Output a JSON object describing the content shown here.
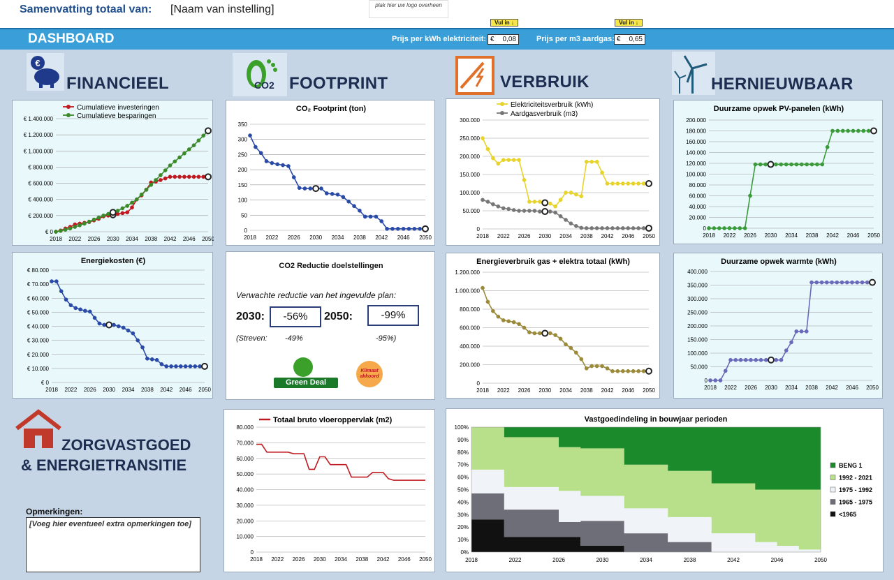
{
  "header": {
    "summary_label": "Samenvatting totaal van:",
    "institution": "[Naam van instelling]",
    "logo_placeholder": "plak hier uw logo overheen"
  },
  "dashboard": {
    "title": "DASHBOARD",
    "fill_in": "Vul in ↓",
    "electricity_price": {
      "label": "Prijs per kWh elektriciteit:",
      "currency": "€",
      "value": "0,08"
    },
    "gas_price": {
      "label": "Prijs per m3 aardgas:",
      "currency": "€",
      "value": "0,65"
    }
  },
  "sections": {
    "financial": "FINANCIEEL",
    "footprint": "FOOTPRINT",
    "footprint_icon_text": "CO2",
    "usage": "VERBRUIK",
    "renewable": "HERNIEUWBAAR",
    "real_estate_line1": "ZORGVASTGOED",
    "real_estate_line2": "& ENERGIETRANSITIE"
  },
  "icons": {
    "financial": "piggy-bank-icon",
    "footprint": "footprint-icon",
    "usage": "energy-icon",
    "renewable": "wind-turbine-icon",
    "real_estate": "house-icon"
  },
  "colors": {
    "dashbar": "#3a9fd9",
    "green": "#3a8a2a",
    "red": "#c0191f",
    "blue": "#2a4aa8",
    "yellow": "#e8d32a",
    "grey": "#777777",
    "olive": "#9a8a3a",
    "teal": "#2a6a9a"
  },
  "co2_targets": {
    "title": "CO2 Reductie doelstellingen",
    "expected_label": "Verwachte reductie van het ingevulde plan:",
    "y2030_label": "2030:",
    "y2030_value": "-56%",
    "y2050_label": "2050:",
    "y2050_value": "-99%",
    "strive_label": "(Streven:",
    "strive_2030": "-49%",
    "strive_2050": "-95%)",
    "green_deal": "Green Deal",
    "climate_badge": "Klimaat akkoord"
  },
  "remarks": {
    "label": "Opmerkingen:",
    "value": "[Voeg hier eventueel extra opmerkingen toe]"
  },
  "chart_data": [
    {
      "id": "investments",
      "type": "line",
      "title": "",
      "x": [
        2018,
        2019,
        2020,
        2021,
        2022,
        2023,
        2024,
        2025,
        2026,
        2027,
        2028,
        2029,
        2030,
        2031,
        2032,
        2033,
        2034,
        2035,
        2036,
        2037,
        2038,
        2039,
        2040,
        2041,
        2042,
        2043,
        2044,
        2045,
        2046,
        2047,
        2048,
        2049,
        2050
      ],
      "x_ticks": [
        "2018",
        "2022",
        "2026",
        "2030",
        "2034",
        "2038",
        "2042",
        "2046",
        "2050"
      ],
      "y_ticks": [
        "€ 0",
        "€ 200.000",
        "€ 400.000",
        "€ 600.000",
        "€ 800.000",
        "€ 1.000.000",
        "€ 1.200.000",
        "€ 1.400.000"
      ],
      "ylim": [
        0,
        1400000
      ],
      "series": [
        {
          "name": "Cumulatieve investeringen",
          "color": "#c0191f",
          "values": [
            0,
            15000,
            40000,
            60000,
            90000,
            100000,
            110000,
            120000,
            140000,
            160000,
            190000,
            200000,
            210000,
            220000,
            230000,
            240000,
            300000,
            400000,
            450000,
            520000,
            610000,
            620000,
            640000,
            660000,
            680000,
            680000,
            680000,
            680000,
            680000,
            680000,
            680000,
            680000,
            680000
          ]
        },
        {
          "name": "Cumulatieve besparingen",
          "color": "#3a8a2a",
          "values": [
            0,
            10000,
            25000,
            40000,
            60000,
            80000,
            100000,
            125000,
            150000,
            175000,
            200000,
            220000,
            240000,
            260000,
            290000,
            320000,
            360000,
            400000,
            460000,
            520000,
            580000,
            640000,
            700000,
            760000,
            820000,
            870000,
            920000,
            970000,
            1020000,
            1070000,
            1130000,
            1190000,
            1250000
          ]
        }
      ]
    },
    {
      "id": "footprint",
      "type": "line",
      "title": "CO₂ Footprint (ton)",
      "x": [
        2018,
        2019,
        2020,
        2021,
        2022,
        2023,
        2024,
        2025,
        2026,
        2027,
        2028,
        2029,
        2030,
        2031,
        2032,
        2033,
        2034,
        2035,
        2036,
        2037,
        2038,
        2039,
        2040,
        2041,
        2042,
        2043,
        2044,
        2045,
        2046,
        2047,
        2048,
        2049,
        2050
      ],
      "x_ticks": [
        "2018",
        "2022",
        "2026",
        "2030",
        "2034",
        "2038",
        "2042",
        "2046",
        "2050"
      ],
      "y_ticks": [
        "0",
        "50",
        "100",
        "150",
        "200",
        "250",
        "300",
        "350"
      ],
      "ylim": [
        0,
        350
      ],
      "series": [
        {
          "name": "",
          "color": "#2a4aa8",
          "values": [
            313,
            275,
            255,
            228,
            222,
            218,
            215,
            212,
            175,
            140,
            138,
            138,
            138,
            138,
            122,
            120,
            118,
            110,
            95,
            80,
            65,
            45,
            45,
            45,
            30,
            5,
            5,
            5,
            5,
            5,
            5,
            5,
            5
          ]
        }
      ]
    },
    {
      "id": "usage",
      "type": "line",
      "title": "",
      "x": [
        2018,
        2019,
        2020,
        2021,
        2022,
        2023,
        2024,
        2025,
        2026,
        2027,
        2028,
        2029,
        2030,
        2031,
        2032,
        2033,
        2034,
        2035,
        2036,
        2037,
        2038,
        2039,
        2040,
        2041,
        2042,
        2043,
        2044,
        2045,
        2046,
        2047,
        2048,
        2049,
        2050
      ],
      "x_ticks": [
        "2018",
        "2022",
        "2026",
        "2030",
        "2034",
        "2038",
        "2042",
        "2046",
        "2050"
      ],
      "y_ticks": [
        "0",
        "50.000",
        "100.000",
        "150.000",
        "200.000",
        "250.000",
        "300.000"
      ],
      "ylim": [
        0,
        300000
      ],
      "series": [
        {
          "name": "Elektriciteitsverbruik (kWh)",
          "color": "#e8d32a",
          "values": [
            250000,
            220000,
            195000,
            180000,
            190000,
            190000,
            190000,
            190000,
            135000,
            75000,
            75000,
            75000,
            72000,
            70000,
            62000,
            80000,
            100000,
            100000,
            95000,
            90000,
            185000,
            185000,
            185000,
            155000,
            125000,
            125000,
            125000,
            125000,
            125000,
            125000,
            125000,
            125000,
            125000
          ]
        },
        {
          "name": "Aardgasverbruik (m3)",
          "color": "#777777",
          "values": [
            80000,
            75000,
            68000,
            62000,
            57000,
            55000,
            52000,
            50000,
            50000,
            50000,
            50000,
            48000,
            48000,
            48000,
            45000,
            35000,
            25000,
            15000,
            8000,
            3000,
            2000,
            2000,
            2000,
            2000,
            2000,
            2000,
            2000,
            2000,
            2000,
            2000,
            2000,
            2000,
            2000
          ]
        }
      ]
    },
    {
      "id": "pv",
      "type": "line",
      "title": "Duurzame opwek PV-panelen (kWh)",
      "x": [
        2018,
        2019,
        2020,
        2021,
        2022,
        2023,
        2024,
        2025,
        2026,
        2027,
        2028,
        2029,
        2030,
        2031,
        2032,
        2033,
        2034,
        2035,
        2036,
        2037,
        2038,
        2039,
        2040,
        2041,
        2042,
        2043,
        2044,
        2045,
        2046,
        2047,
        2048,
        2049,
        2050
      ],
      "x_ticks": [
        "2018",
        "2022",
        "2026",
        "2030",
        "2034",
        "2038",
        "2042",
        "2046",
        "2050"
      ],
      "y_ticks": [
        "0",
        "20.000",
        "40.000",
        "60.000",
        "80.000",
        "100.000",
        "120.000",
        "140.000",
        "160.000",
        "180.000",
        "200.000"
      ],
      "ylim": [
        0,
        200000
      ],
      "series": [
        {
          "name": "",
          "color": "#3a9a3a",
          "values": [
            0,
            0,
            0,
            0,
            0,
            0,
            0,
            0,
            60000,
            118000,
            118000,
            118000,
            118000,
            118000,
            118000,
            118000,
            118000,
            118000,
            118000,
            118000,
            118000,
            118000,
            118000,
            150000,
            180000,
            180000,
            180000,
            180000,
            180000,
            180000,
            180000,
            180000,
            180000
          ]
        }
      ]
    },
    {
      "id": "costs",
      "type": "line",
      "title": "Energiekosten (€)",
      "x": [
        2018,
        2019,
        2020,
        2021,
        2022,
        2023,
        2024,
        2025,
        2026,
        2027,
        2028,
        2029,
        2030,
        2031,
        2032,
        2033,
        2034,
        2035,
        2036,
        2037,
        2038,
        2039,
        2040,
        2041,
        2042,
        2043,
        2044,
        2045,
        2046,
        2047,
        2048,
        2049,
        2050
      ],
      "x_ticks": [
        "2018",
        "2022",
        "2026",
        "2030",
        "2034",
        "2038",
        "2042",
        "2046",
        "2050"
      ],
      "y_ticks": [
        "€ 0",
        "€ 10.000",
        "€ 20.000",
        "€ 30.000",
        "€ 40.000",
        "€ 50.000",
        "€ 60.000",
        "€ 70.000",
        "€ 80.000"
      ],
      "ylim": [
        0,
        80000
      ],
      "series": [
        {
          "name": "",
          "color": "#2a4aa8",
          "values": [
            72000,
            72000,
            65000,
            59000,
            55000,
            53000,
            52000,
            51000,
            50500,
            46000,
            42000,
            41000,
            41000,
            41000,
            40000,
            39000,
            37000,
            35000,
            30000,
            25000,
            17000,
            16500,
            16000,
            13000,
            11500,
            11500,
            11500,
            11500,
            11500,
            11500,
            11500,
            11500,
            11500
          ]
        }
      ]
    },
    {
      "id": "total",
      "type": "line",
      "title": "Energieverbruik gas + elektra totaal (kWh)",
      "x": [
        2018,
        2019,
        2020,
        2021,
        2022,
        2023,
        2024,
        2025,
        2026,
        2027,
        2028,
        2029,
        2030,
        2031,
        2032,
        2033,
        2034,
        2035,
        2036,
        2037,
        2038,
        2039,
        2040,
        2041,
        2042,
        2043,
        2044,
        2045,
        2046,
        2047,
        2048,
        2049,
        2050
      ],
      "x_ticks": [
        "2018",
        "2022",
        "2026",
        "2030",
        "2034",
        "2038",
        "2042",
        "2046",
        "2050"
      ],
      "y_ticks": [
        "0",
        "200.000",
        "400.000",
        "600.000",
        "800.000",
        "1.000.000",
        "1.200.000"
      ],
      "ylim": [
        0,
        1200000
      ],
      "series": [
        {
          "name": "",
          "color": "#9a8a3a",
          "values": [
            1030000,
            880000,
            780000,
            720000,
            680000,
            670000,
            660000,
            640000,
            600000,
            550000,
            540000,
            540000,
            540000,
            540000,
            520000,
            480000,
            420000,
            380000,
            330000,
            260000,
            160000,
            185000,
            185000,
            185000,
            160000,
            130000,
            130000,
            130000,
            130000,
            130000,
            130000,
            130000,
            130000
          ]
        }
      ]
    },
    {
      "id": "heat",
      "type": "line",
      "title": "Duurzame opwek warmte (kWh)",
      "x": [
        2018,
        2019,
        2020,
        2021,
        2022,
        2023,
        2024,
        2025,
        2026,
        2027,
        2028,
        2029,
        2030,
        2031,
        2032,
        2033,
        2034,
        2035,
        2036,
        2037,
        2038,
        2039,
        2040,
        2041,
        2042,
        2043,
        2044,
        2045,
        2046,
        2047,
        2048,
        2049,
        2050
      ],
      "x_ticks": [
        "2018",
        "2022",
        "2026",
        "2030",
        "2034",
        "2038",
        "2042",
        "2046",
        "2050"
      ],
      "y_ticks": [
        "0",
        "50.000",
        "100.000",
        "150.000",
        "200.000",
        "250.000",
        "300.000",
        "350.000",
        "400.000"
      ],
      "ylim": [
        0,
        400000
      ],
      "series": [
        {
          "name": "",
          "color": "#6a6aba",
          "values": [
            0,
            0,
            0,
            35000,
            75000,
            75000,
            75000,
            75000,
            75000,
            75000,
            75000,
            75000,
            75000,
            75000,
            75000,
            110000,
            140000,
            180000,
            180000,
            180000,
            360000,
            360000,
            360000,
            360000,
            360000,
            360000,
            360000,
            360000,
            360000,
            360000,
            360000,
            360000,
            360000
          ]
        }
      ]
    },
    {
      "id": "floor",
      "type": "line",
      "title": "",
      "x": [
        2018,
        2019,
        2020,
        2021,
        2022,
        2023,
        2024,
        2025,
        2026,
        2027,
        2028,
        2029,
        2030,
        2031,
        2032,
        2033,
        2034,
        2035,
        2036,
        2037,
        2038,
        2039,
        2040,
        2041,
        2042,
        2043,
        2044,
        2045,
        2046,
        2047,
        2048,
        2049,
        2050
      ],
      "x_ticks": [
        "2018",
        "2022",
        "2026",
        "2030",
        "2034",
        "2038",
        "2042",
        "2046",
        "2050"
      ],
      "y_ticks": [
        "0",
        "10.000",
        "20.000",
        "30.000",
        "40.000",
        "50.000",
        "60.000",
        "70.000",
        "80.000"
      ],
      "ylim": [
        0,
        80000
      ],
      "series": [
        {
          "name": "Totaal bruto vloeroppervlak (m2)",
          "color": "#c0191f",
          "values": [
            69000,
            69000,
            64000,
            64000,
            64000,
            64000,
            64000,
            63000,
            63000,
            63000,
            53000,
            53000,
            61000,
            61000,
            56000,
            56000,
            56000,
            56000,
            48000,
            48000,
            48000,
            48000,
            51000,
            51000,
            51000,
            47000,
            46000,
            46000,
            46000,
            46000,
            46000,
            46000,
            46000
          ]
        }
      ]
    },
    {
      "id": "buildyear",
      "type": "area",
      "title": "Vastgoedindeling in bouwjaar perioden",
      "x": [
        2018,
        2021,
        2026,
        2028,
        2032,
        2036,
        2040,
        2044,
        2046,
        2048,
        2050
      ],
      "x_ticks": [
        "2018",
        "2022",
        "2026",
        "2030",
        "2034",
        "2038",
        "2042",
        "2046",
        "2050"
      ],
      "y_ticks": [
        "0%",
        "10%",
        "20%",
        "30%",
        "40%",
        "50%",
        "60%",
        "70%",
        "80%",
        "90%",
        "100%"
      ],
      "ylim": [
        0,
        100
      ],
      "series": [
        {
          "name": "<1965",
          "color": "#111111",
          "values": [
            26,
            12,
            12,
            5,
            0,
            0,
            0,
            0,
            0,
            0,
            0
          ]
        },
        {
          "name": "1965 - 1975",
          "color": "#6e6e78",
          "values": [
            21,
            22,
            12,
            20,
            15,
            8,
            0,
            0,
            0,
            0,
            0
          ]
        },
        {
          "name": "1975 - 1992",
          "color": "#f0f4f8",
          "values": [
            19,
            18,
            25,
            20,
            20,
            20,
            15,
            8,
            5,
            2,
            0
          ]
        },
        {
          "name": "1992 - 2021",
          "color": "#b8e08a",
          "values": [
            34,
            40,
            35,
            38,
            35,
            37,
            40,
            42,
            45,
            48,
            50
          ]
        },
        {
          "name": "BENG 1",
          "color": "#1a8a2a",
          "values": [
            0,
            8,
            16,
            17,
            30,
            35,
            45,
            50,
            50,
            50,
            50
          ]
        }
      ]
    }
  ]
}
